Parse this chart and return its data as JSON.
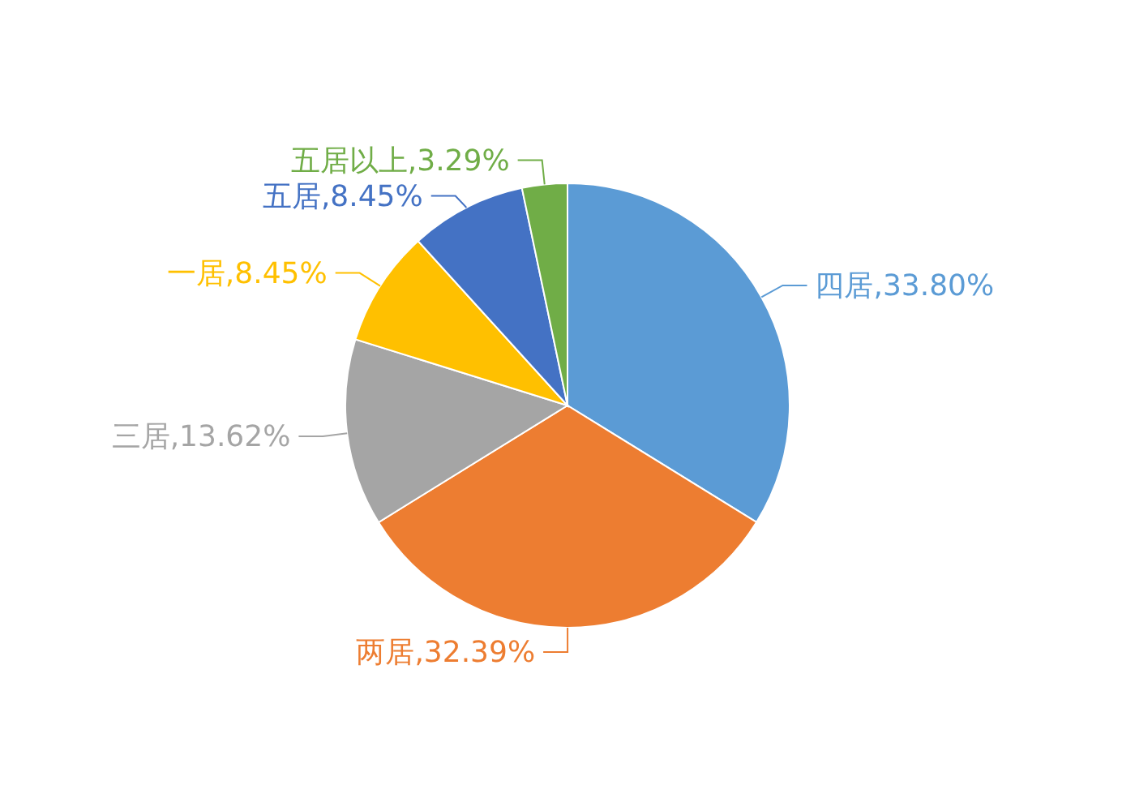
{
  "chart_data": {
    "type": "pie",
    "categories": [
      "四居",
      "两居",
      "三居",
      "一居",
      "五居",
      "五居以上"
    ],
    "values": [
      33.8,
      32.39,
      13.62,
      8.45,
      8.45,
      3.29
    ],
    "colors": [
      "#5b9bd5",
      "#ed7d31",
      "#a5a5a5",
      "#ffc000",
      "#4472c4",
      "#70ad47"
    ],
    "value_labels": [
      ",33.80%",
      ",32.39%",
      ",13.62%",
      ",8.45%",
      ",8.45%",
      ",3.29%"
    ],
    "legend": false
  }
}
